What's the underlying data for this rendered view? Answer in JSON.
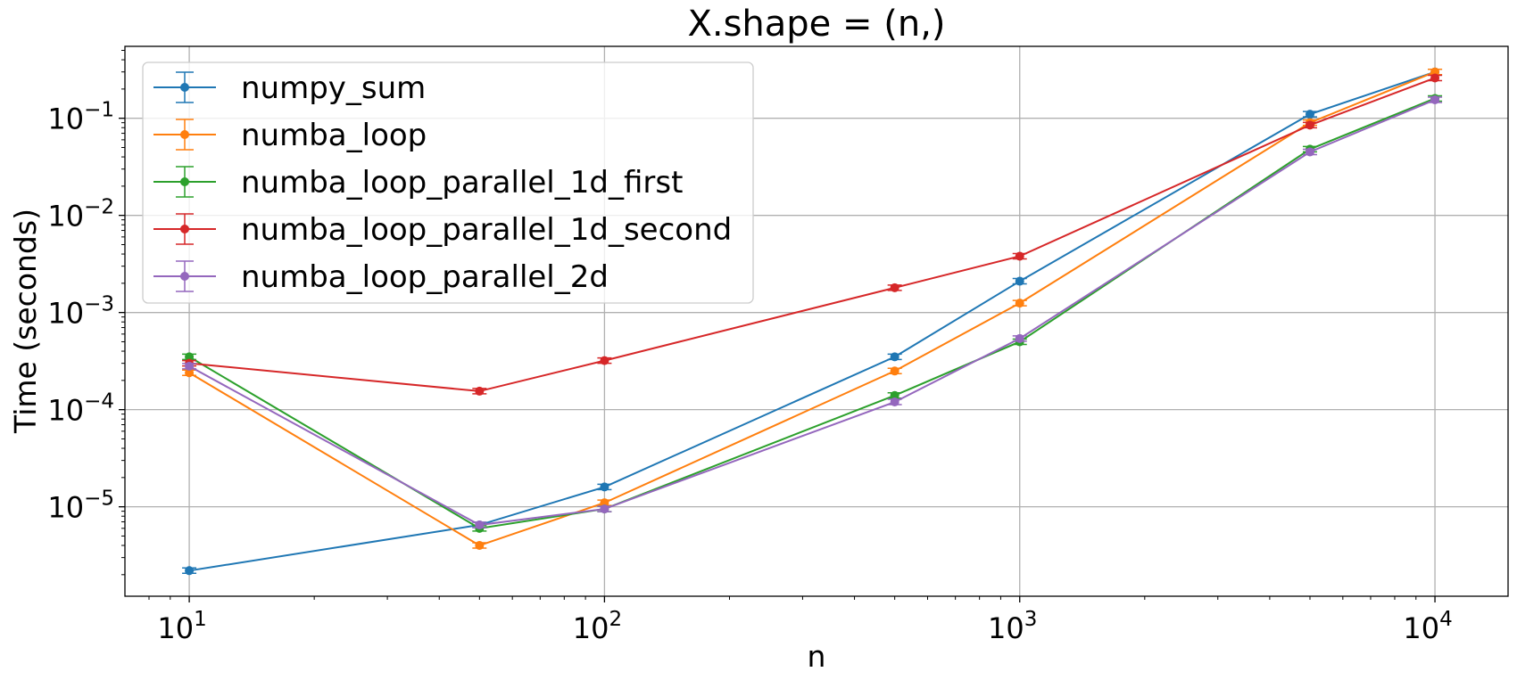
{
  "chart_data": {
    "type": "line",
    "title": "X.shape = (n,)",
    "xlabel": "n",
    "ylabel": "Time (seconds)",
    "xscale": "log",
    "yscale": "log",
    "xlim": [
      7,
      15000
    ],
    "ylim": [
      1.2e-06,
      0.55
    ],
    "grid": true,
    "legend_position": "upper-left",
    "x": [
      10,
      50,
      100,
      500,
      1000,
      5000,
      10000
    ],
    "x_ticks": [
      {
        "base": "10",
        "exp": "1",
        "value": 10
      },
      {
        "base": "10",
        "exp": "2",
        "value": 100
      },
      {
        "base": "10",
        "exp": "3",
        "value": 1000
      },
      {
        "base": "10",
        "exp": "4",
        "value": 10000
      }
    ],
    "y_ticks": [
      {
        "base": "10",
        "exp": "−5",
        "value": 1e-05
      },
      {
        "base": "10",
        "exp": "−4",
        "value": 0.0001
      },
      {
        "base": "10",
        "exp": "−3",
        "value": 0.001
      },
      {
        "base": "10",
        "exp": "−2",
        "value": 0.01
      },
      {
        "base": "10",
        "exp": "−1",
        "value": 0.1
      }
    ],
    "series": [
      {
        "name": "numpy_sum",
        "color": "#1f77b4",
        "values": [
          2.2e-06,
          6.5e-06,
          1.6e-05,
          0.00035,
          0.0021,
          0.11,
          0.3
        ]
      },
      {
        "name": "numba_loop",
        "color": "#ff7f0e",
        "values": [
          0.00024,
          4e-06,
          1.1e-05,
          0.00025,
          0.00125,
          0.09,
          0.3
        ]
      },
      {
        "name": "numba_loop_parallel_1d_first",
        "color": "#2ca02c",
        "values": [
          0.00035,
          6e-06,
          9.5e-06,
          0.00014,
          0.0005,
          0.048,
          0.16
        ]
      },
      {
        "name": "numba_loop_parallel_1d_second",
        "color": "#d62728",
        "values": [
          0.0003,
          0.000155,
          0.00032,
          0.0018,
          0.0038,
          0.085,
          0.26
        ]
      },
      {
        "name": "numba_loop_parallel_2d",
        "color": "#9467bd",
        "values": [
          0.00028,
          6.5e-06,
          9.5e-06,
          0.00012,
          0.00054,
          0.045,
          0.155
        ]
      }
    ]
  }
}
